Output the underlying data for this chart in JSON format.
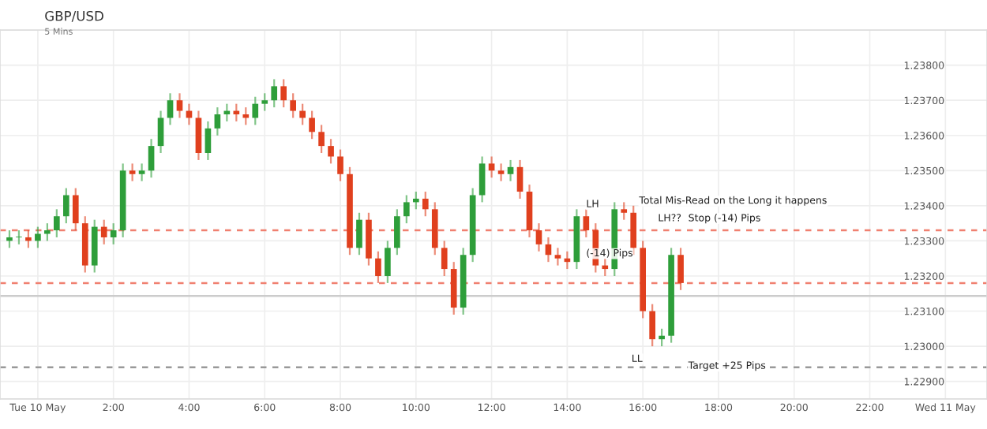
{
  "chart_data": {
    "type": "candlestick",
    "title": "GBP/USD",
    "subtitle": "5 Mins",
    "x": [
      -0.75,
      -0.5,
      -0.25,
      0,
      0.25,
      0.5,
      0.75,
      1,
      1.25,
      1.5,
      1.75,
      2,
      2.25,
      2.5,
      2.75,
      3,
      3.25,
      3.5,
      3.75,
      4,
      4.25,
      4.5,
      4.75,
      5,
      5.25,
      5.5,
      5.75,
      6,
      6.25,
      6.5,
      6.75,
      7,
      7.25,
      7.5,
      7.75,
      8,
      8.25,
      8.5,
      8.75,
      9,
      9.25,
      9.5,
      9.75,
      10,
      10.25,
      10.5,
      10.75,
      11,
      11.25,
      11.5,
      11.75,
      12,
      12.25,
      12.5,
      12.75,
      13,
      13.25,
      13.5,
      13.75,
      14,
      14.25,
      14.5,
      14.75,
      15,
      15.25,
      15.5,
      15.75,
      16,
      16.25,
      16.5,
      16.75,
      17
    ],
    "ohlc": [
      [
        1.233,
        1.2333,
        1.2328,
        1.2331
      ],
      [
        1.2331,
        1.2333,
        1.2329,
        1.2331
      ],
      [
        1.2331,
        1.2333,
        1.2328,
        1.233
      ],
      [
        1.233,
        1.2334,
        1.2328,
        1.2332
      ],
      [
        1.2332,
        1.2335,
        1.233,
        1.2333
      ],
      [
        1.2333,
        1.2339,
        1.2331,
        1.2337
      ],
      [
        1.2337,
        1.2345,
        1.2335,
        1.2343
      ],
      [
        1.2343,
        1.2345,
        1.2333,
        1.2335
      ],
      [
        1.2335,
        1.2337,
        1.2321,
        1.2323
      ],
      [
        1.2323,
        1.2336,
        1.2321,
        1.2334
      ],
      [
        1.2334,
        1.2336,
        1.2329,
        1.2331
      ],
      [
        1.2331,
        1.2335,
        1.2329,
        1.2333
      ],
      [
        1.2333,
        1.2352,
        1.2331,
        1.235
      ],
      [
        1.235,
        1.2352,
        1.2347,
        1.2349
      ],
      [
        1.2349,
        1.2352,
        1.2347,
        1.235
      ],
      [
        1.235,
        1.2359,
        1.2348,
        1.2357
      ],
      [
        1.2357,
        1.2367,
        1.2355,
        1.2365
      ],
      [
        1.2365,
        1.2372,
        1.2363,
        1.237
      ],
      [
        1.237,
        1.2372,
        1.2365,
        1.2367
      ],
      [
        1.2367,
        1.2369,
        1.2363,
        1.2365
      ],
      [
        1.2365,
        1.2367,
        1.2353,
        1.2355
      ],
      [
        1.2355,
        1.2364,
        1.2353,
        1.2362
      ],
      [
        1.2362,
        1.2368,
        1.236,
        1.2366
      ],
      [
        1.2366,
        1.2369,
        1.2364,
        1.2367
      ],
      [
        1.2367,
        1.2369,
        1.2364,
        1.2366
      ],
      [
        1.2366,
        1.2368,
        1.2363,
        1.2365
      ],
      [
        1.2365,
        1.2371,
        1.2363,
        1.2369
      ],
      [
        1.2369,
        1.2372,
        1.2367,
        1.237
      ],
      [
        1.237,
        1.2376,
        1.2368,
        1.2374
      ],
      [
        1.2374,
        1.2376,
        1.2368,
        1.237
      ],
      [
        1.237,
        1.2372,
        1.2365,
        1.2367
      ],
      [
        1.2367,
        1.2369,
        1.2363,
        1.2365
      ],
      [
        1.2365,
        1.2367,
        1.2359,
        1.2361
      ],
      [
        1.2361,
        1.2363,
        1.2355,
        1.2357
      ],
      [
        1.2357,
        1.2359,
        1.2352,
        1.2354
      ],
      [
        1.2354,
        1.2356,
        1.2347,
        1.2349
      ],
      [
        1.2349,
        1.2351,
        1.2326,
        1.2328
      ],
      [
        1.2328,
        1.2338,
        1.2326,
        1.2336
      ],
      [
        1.2336,
        1.2338,
        1.2323,
        1.2325
      ],
      [
        1.2325,
        1.2327,
        1.2318,
        1.232
      ],
      [
        1.232,
        1.233,
        1.2318,
        1.2328
      ],
      [
        1.2328,
        1.2339,
        1.2326,
        1.2337
      ],
      [
        1.2337,
        1.2343,
        1.2335,
        1.2341
      ],
      [
        1.2341,
        1.2344,
        1.2339,
        1.2342
      ],
      [
        1.2342,
        1.2344,
        1.2337,
        1.2339
      ],
      [
        1.2339,
        1.2341,
        1.2326,
        1.2328
      ],
      [
        1.2328,
        1.233,
        1.232,
        1.2322
      ],
      [
        1.2322,
        1.2324,
        1.2309,
        1.2311
      ],
      [
        1.2311,
        1.2328,
        1.2309,
        1.2326
      ],
      [
        1.2326,
        1.2345,
        1.2324,
        1.2343
      ],
      [
        1.2343,
        1.2354,
        1.2341,
        1.2352
      ],
      [
        1.2352,
        1.2354,
        1.2348,
        1.235
      ],
      [
        1.235,
        1.2352,
        1.2347,
        1.2349
      ],
      [
        1.2349,
        1.2353,
        1.2347,
        1.2351
      ],
      [
        1.2351,
        1.2353,
        1.2342,
        1.2344
      ],
      [
        1.2344,
        1.2346,
        1.2331,
        1.2333
      ],
      [
        1.2333,
        1.2335,
        1.2327,
        1.2329
      ],
      [
        1.2329,
        1.2331,
        1.2324,
        1.2326
      ],
      [
        1.2326,
        1.2328,
        1.2323,
        1.2325
      ],
      [
        1.2325,
        1.2327,
        1.2322,
        1.2324
      ],
      [
        1.2324,
        1.2339,
        1.2322,
        1.2337
      ],
      [
        1.2337,
        1.2339,
        1.2331,
        1.2333
      ],
      [
        1.2333,
        1.2335,
        1.2321,
        1.2323
      ],
      [
        1.2323,
        1.2325,
        1.232,
        1.2322
      ],
      [
        1.2322,
        1.2341,
        1.232,
        1.2339
      ],
      [
        1.2339,
        1.2341,
        1.2336,
        1.2338
      ],
      [
        1.2338,
        1.234,
        1.2326,
        1.2328
      ],
      [
        1.2328,
        1.233,
        1.2308,
        1.231
      ],
      [
        1.231,
        1.2312,
        1.23,
        1.2302
      ],
      [
        1.2302,
        1.2305,
        1.23,
        1.2303
      ],
      [
        1.2303,
        1.2328,
        1.2301,
        1.2326
      ],
      [
        1.2326,
        1.2328,
        1.2316,
        1.2318
      ]
    ],
    "colors": [
      "#2e9e3a",
      "#2e9e3a",
      "#e0401e",
      "#2e9e3a",
      "#2e9e3a",
      "#2e9e3a",
      "#2e9e3a",
      "#e0401e",
      "#e0401e",
      "#2e9e3a",
      "#e0401e",
      "#2e9e3a",
      "#2e9e3a",
      "#e0401e",
      "#2e9e3a",
      "#2e9e3a",
      "#2e9e3a",
      "#2e9e3a",
      "#e0401e",
      "#e0401e",
      "#e0401e",
      "#2e9e3a",
      "#2e9e3a",
      "#2e9e3a",
      "#e0401e",
      "#e0401e",
      "#2e9e3a",
      "#2e9e3a",
      "#2e9e3a",
      "#e0401e",
      "#e0401e",
      "#e0401e",
      "#e0401e",
      "#e0401e",
      "#e0401e",
      "#e0401e",
      "#e0401e",
      "#2e9e3a",
      "#e0401e",
      "#e0401e",
      "#2e9e3a",
      "#2e9e3a",
      "#2e9e3a",
      "#2e9e3a",
      "#e0401e",
      "#e0401e",
      "#e0401e",
      "#e0401e",
      "#2e9e3a",
      "#2e9e3a",
      "#2e9e3a",
      "#e0401e",
      "#e0401e",
      "#2e9e3a",
      "#e0401e",
      "#e0401e",
      "#e0401e",
      "#e0401e",
      "#e0401e",
      "#e0401e",
      "#2e9e3a",
      "#e0401e",
      "#e0401e",
      "#e0401e",
      "#2e9e3a",
      "#e0401e",
      "#e0401e",
      "#e0401e",
      "#e0401e",
      "#2e9e3a",
      "#2e9e3a",
      "#e0401e"
    ],
    "xlim": [
      -1.0,
      25.1
    ],
    "ylim": [
      1.2285,
      1.239
    ],
    "xticks": [
      {
        "value": 0,
        "label": "Tue 10 May"
      },
      {
        "value": 2,
        "label": "2:00"
      },
      {
        "value": 4,
        "label": "4:00"
      },
      {
        "value": 6,
        "label": "6:00"
      },
      {
        "value": 8,
        "label": "8:00"
      },
      {
        "value": 10,
        "label": "10:00"
      },
      {
        "value": 12,
        "label": "12:00"
      },
      {
        "value": 14,
        "label": "14:00"
      },
      {
        "value": 16,
        "label": "16:00"
      },
      {
        "value": 18,
        "label": "18:00"
      },
      {
        "value": 20,
        "label": "20:00"
      },
      {
        "value": 22,
        "label": "22:00"
      },
      {
        "value": 24,
        "label": "Wed 11 May"
      }
    ],
    "yticks": [
      {
        "value": 1.229,
        "label": "1.22900"
      },
      {
        "value": 1.23,
        "label": "1.23000"
      },
      {
        "value": 1.231,
        "label": "1.23100"
      },
      {
        "value": 1.232,
        "label": "1.23200"
      },
      {
        "value": 1.233,
        "label": "1.23300"
      },
      {
        "value": 1.234,
        "label": "1.23400"
      },
      {
        "value": 1.235,
        "label": "1.23500"
      },
      {
        "value": 1.236,
        "label": "1.23600"
      },
      {
        "value": 1.237,
        "label": "1.23700"
      },
      {
        "value": 1.238,
        "label": "1.23800"
      }
    ],
    "grid": true,
    "ref_lines": [
      {
        "axis": "y",
        "value": 1.2333,
        "color": "#f08070",
        "line_style": "dashed"
      },
      {
        "axis": "y",
        "value": 1.2318,
        "color": "#f08070",
        "line_style": "dashed"
      },
      {
        "axis": "y",
        "value": 1.2294,
        "color": "#999999",
        "line_style": "dashed"
      },
      {
        "axis": "y",
        "value": 1.23143,
        "color": "#cccccc",
        "line_style": "solid"
      }
    ],
    "annotations": [
      {
        "text": "LH",
        "x": 14.5,
        "y": 1.2339
      },
      {
        "text": "Total Mis-Read on the Long it happens",
        "x": 15.9,
        "y": 1.234
      },
      {
        "text": "LH??",
        "x": 16.4,
        "y": 1.2335
      },
      {
        "text": "Stop (-14) Pips",
        "x": 17.2,
        "y": 1.2335
      },
      {
        "text": "(-14) Pips",
        "x": 14.5,
        "y": 1.2325
      },
      {
        "text": "LL",
        "x": 15.7,
        "y": 1.2295
      },
      {
        "text": "Target +25 Pips",
        "x": 17.2,
        "y": 1.2293
      }
    ]
  }
}
